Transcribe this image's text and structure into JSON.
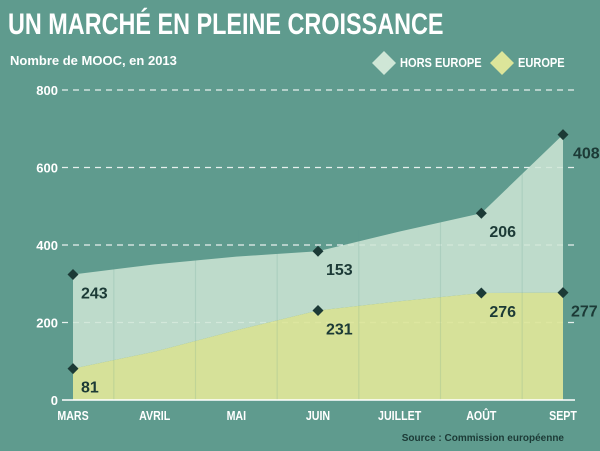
{
  "title": "UN MARCHÉ EN PLEINE CROISSANCE",
  "subtitle": "Nombre de MOOC, en 2013",
  "source": "Source : Commission européenne",
  "colors": {
    "background": "#5f9b8e",
    "hors_europe": "#cfe6d6",
    "europe": "#dce59a",
    "marker": "#1c3a36",
    "gridline": "#ffffff"
  },
  "chart_data": {
    "type": "area",
    "stacked": true,
    "categories": [
      "MARS",
      "AVRIL",
      "MAI",
      "JUIN",
      "JUILLET",
      "AOÛT",
      "SEPT"
    ],
    "ylim": [
      0,
      800
    ],
    "yticks": [
      "0",
      "200",
      "400",
      "600",
      "800"
    ],
    "grid": true,
    "legend_position": "top-right",
    "series": [
      {
        "name": "EUROPE",
        "values": [
          81,
          125,
          180,
          231,
          255,
          276,
          277
        ],
        "labels": [
          "81",
          null,
          null,
          "231",
          null,
          "276",
          "277"
        ]
      },
      {
        "name": "HORS EUROPE",
        "values": [
          243,
          225,
          190,
          153,
          180,
          206,
          408
        ],
        "labels": [
          "243",
          null,
          null,
          "153",
          null,
          "206",
          "408"
        ]
      }
    ]
  }
}
